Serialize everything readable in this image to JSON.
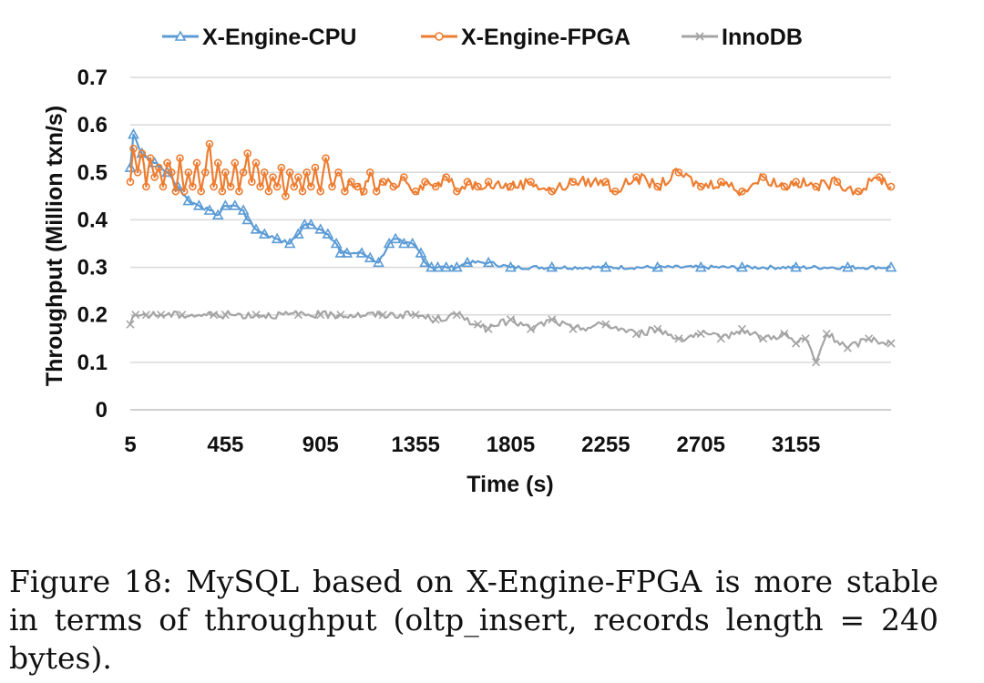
{
  "chart_data": {
    "type": "line",
    "title": "",
    "xlabel": "Time (s)",
    "ylabel": "Throughput  (Million txn/s)",
    "x_ticks": [
      "5",
      "455",
      "905",
      "1355",
      "1805",
      "2255",
      "2705",
      "3155"
    ],
    "y_ticks": [
      "0",
      "0.1",
      "0.2",
      "0.3",
      "0.4",
      "0.5",
      "0.6",
      "0.7"
    ],
    "xlim": [
      5,
      3605
    ],
    "ylim": [
      0,
      0.7
    ],
    "grid": true,
    "legend_position": "top",
    "series": [
      {
        "name": "X-Engine-CPU",
        "color": "#5b9bd5",
        "marker": "triangle",
        "x": [
          5,
          20,
          60,
          120,
          180,
          230,
          280,
          330,
          380,
          420,
          455,
          500,
          540,
          560,
          600,
          640,
          700,
          760,
          800,
          830,
          860,
          905,
          940,
          980,
          1000,
          1030,
          1100,
          1140,
          1180,
          1230,
          1260,
          1300,
          1340,
          1380,
          1400,
          1430,
          1460,
          1500,
          1550,
          1600,
          1700,
          1805,
          2000,
          2255,
          2500,
          2705,
          2900,
          3155,
          3400,
          3605
        ],
        "values": [
          0.51,
          0.58,
          0.54,
          0.52,
          0.5,
          0.47,
          0.44,
          0.43,
          0.42,
          0.41,
          0.43,
          0.43,
          0.42,
          0.4,
          0.38,
          0.37,
          0.36,
          0.35,
          0.37,
          0.39,
          0.39,
          0.38,
          0.37,
          0.35,
          0.33,
          0.33,
          0.33,
          0.32,
          0.31,
          0.35,
          0.36,
          0.35,
          0.35,
          0.33,
          0.31,
          0.3,
          0.3,
          0.3,
          0.3,
          0.31,
          0.31,
          0.3,
          0.3,
          0.3,
          0.3,
          0.3,
          0.3,
          0.3,
          0.3,
          0.3
        ]
      },
      {
        "name": "X-Engine-FPGA",
        "color": "#ed7d31",
        "marker": "circle",
        "x": [
          5,
          20,
          40,
          60,
          80,
          100,
          120,
          140,
          160,
          180,
          200,
          220,
          240,
          260,
          280,
          300,
          320,
          340,
          360,
          380,
          400,
          420,
          440,
          455,
          480,
          500,
          520,
          540,
          560,
          580,
          600,
          620,
          640,
          660,
          680,
          700,
          720,
          740,
          760,
          780,
          800,
          820,
          840,
          860,
          880,
          905,
          930,
          960,
          990,
          1020,
          1050,
          1080,
          1110,
          1140,
          1170,
          1200,
          1250,
          1300,
          1355,
          1400,
          1450,
          1500,
          1550,
          1600,
          1650,
          1700,
          1805,
          1900,
          2000,
          2100,
          2255,
          2300,
          2400,
          2500,
          2600,
          2705,
          2800,
          2900,
          3000,
          3100,
          3155,
          3250,
          3350,
          3450,
          3550,
          3605
        ],
        "values": [
          0.48,
          0.55,
          0.5,
          0.54,
          0.47,
          0.53,
          0.49,
          0.51,
          0.47,
          0.52,
          0.5,
          0.46,
          0.53,
          0.46,
          0.5,
          0.47,
          0.52,
          0.46,
          0.5,
          0.56,
          0.47,
          0.52,
          0.46,
          0.5,
          0.47,
          0.52,
          0.46,
          0.5,
          0.54,
          0.48,
          0.52,
          0.47,
          0.5,
          0.46,
          0.49,
          0.47,
          0.51,
          0.45,
          0.5,
          0.47,
          0.49,
          0.46,
          0.5,
          0.47,
          0.51,
          0.46,
          0.53,
          0.47,
          0.5,
          0.46,
          0.48,
          0.47,
          0.46,
          0.5,
          0.46,
          0.48,
          0.47,
          0.49,
          0.46,
          0.48,
          0.47,
          0.49,
          0.46,
          0.48,
          0.47,
          0.48,
          0.47,
          0.48,
          0.46,
          0.48,
          0.48,
          0.46,
          0.49,
          0.47,
          0.5,
          0.47,
          0.48,
          0.46,
          0.49,
          0.47,
          0.48,
          0.47,
          0.48,
          0.46,
          0.49,
          0.47
        ]
      },
      {
        "name": "InnoDB",
        "color": "#a5a5a5",
        "marker": "x",
        "x": [
          5,
          30,
          80,
          150,
          250,
          400,
          455,
          600,
          800,
          905,
          1000,
          1200,
          1355,
          1450,
          1550,
          1650,
          1700,
          1805,
          1900,
          2000,
          2100,
          2255,
          2400,
          2500,
          2600,
          2705,
          2800,
          2900,
          3000,
          3100,
          3155,
          3200,
          3250,
          3300,
          3400,
          3500,
          3605
        ],
        "values": [
          0.18,
          0.2,
          0.2,
          0.2,
          0.2,
          0.2,
          0.2,
          0.2,
          0.2,
          0.2,
          0.2,
          0.2,
          0.2,
          0.19,
          0.2,
          0.18,
          0.17,
          0.19,
          0.17,
          0.19,
          0.17,
          0.18,
          0.16,
          0.17,
          0.15,
          0.16,
          0.15,
          0.17,
          0.15,
          0.16,
          0.14,
          0.15,
          0.1,
          0.16,
          0.13,
          0.15,
          0.14
        ]
      }
    ]
  },
  "caption": "Figure 18: MySQL based on X-Engine-FPGA is more stable in terms of throughput (oltp_insert, records length = 240 bytes)."
}
